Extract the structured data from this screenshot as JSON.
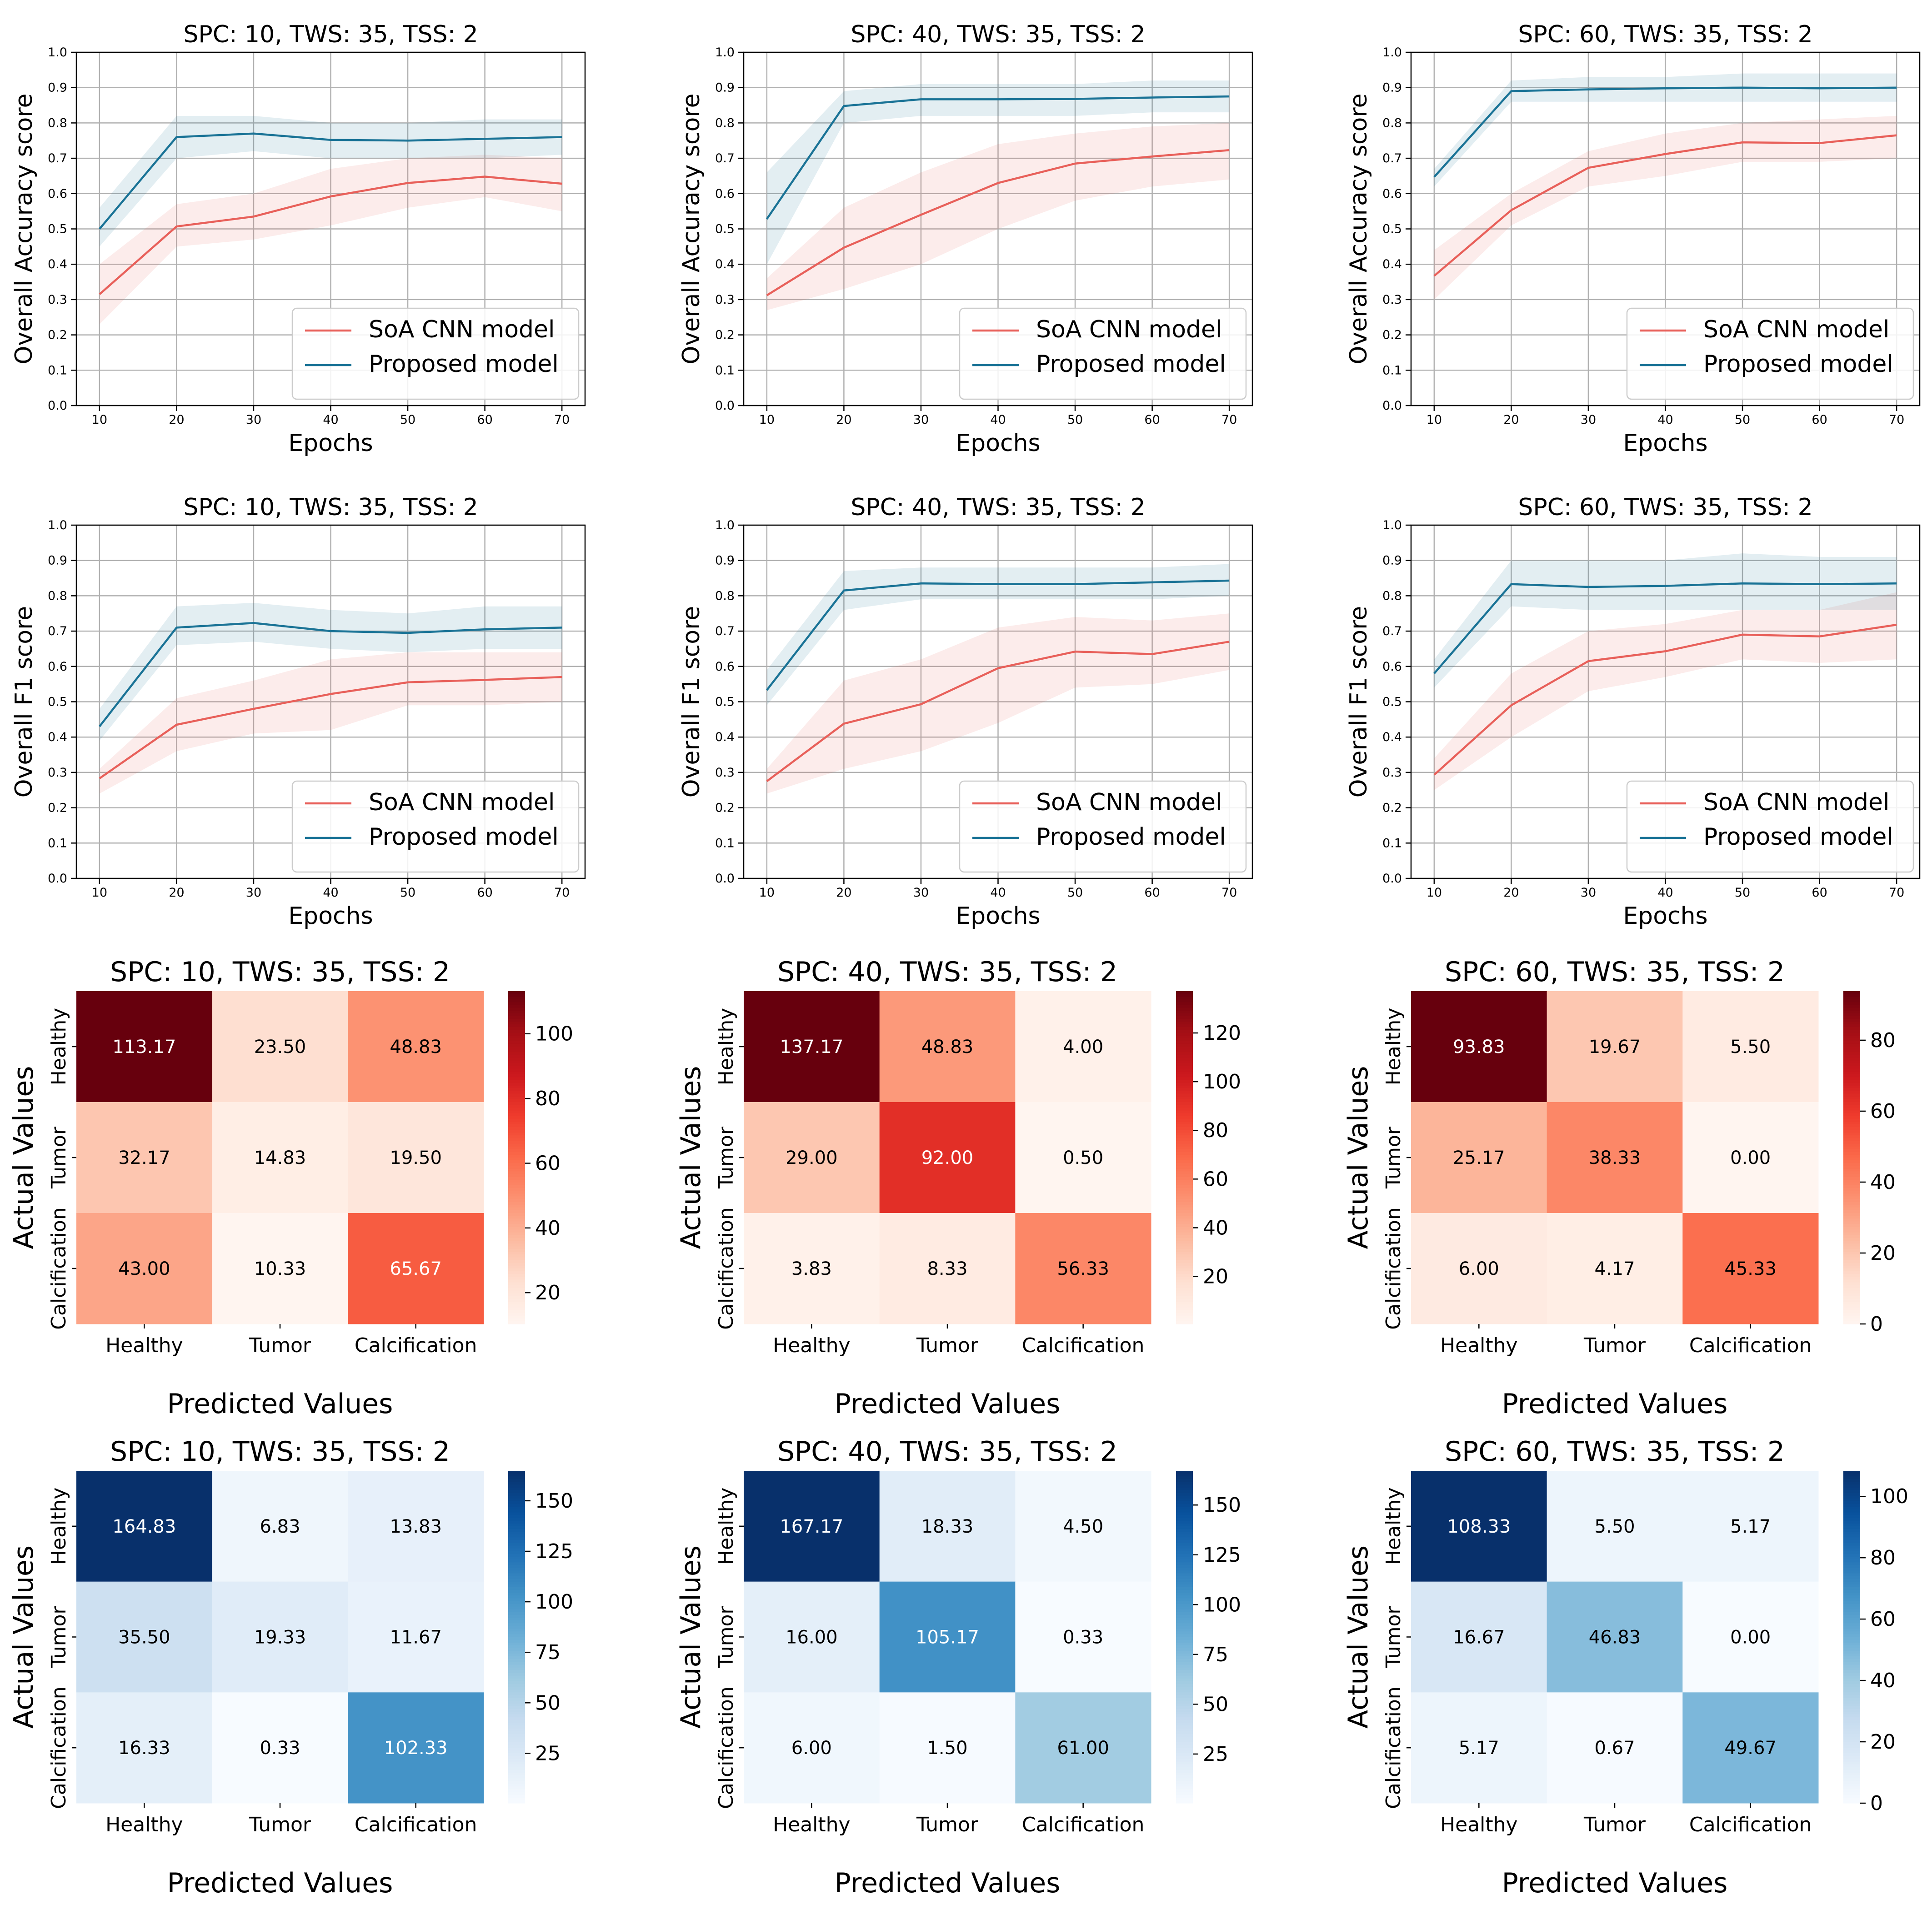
{
  "figure": {
    "description": ""
  },
  "chart_data": [
    {
      "kind": "line",
      "type": "line",
      "slot": 0,
      "title": "SPC: 10, TWS: 35, TSS: 2",
      "xlabel": "Epochs",
      "ylabel": "Overall Accuracy score",
      "x": [
        10,
        20,
        30,
        40,
        50,
        60,
        70
      ],
      "xlim": [
        7,
        73
      ],
      "ylim": [
        0.0,
        1.0
      ],
      "xticks": [
        "10",
        "20",
        "30",
        "40",
        "50",
        "60",
        "70"
      ],
      "yticks": [
        "0.0",
        "0.1",
        "0.2",
        "0.3",
        "0.4",
        "0.5",
        "0.6",
        "0.7",
        "0.8",
        "0.9",
        "1.0"
      ],
      "grid": true,
      "legend_position": "lower-right",
      "series": [
        {
          "name": "SoA CNN model",
          "color": "#e8605a",
          "values": [
            0.315,
            0.507,
            0.535,
            0.592,
            0.63,
            0.648,
            0.628
          ],
          "lower": [
            0.23,
            0.45,
            0.47,
            0.51,
            0.56,
            0.59,
            0.55
          ],
          "upper": [
            0.4,
            0.57,
            0.6,
            0.67,
            0.7,
            0.71,
            0.7
          ]
        },
        {
          "name": "Proposed model",
          "color": "#1a7396",
          "values": [
            0.5,
            0.76,
            0.77,
            0.752,
            0.75,
            0.755,
            0.76
          ],
          "lower": [
            0.45,
            0.7,
            0.72,
            0.7,
            0.7,
            0.7,
            0.71
          ],
          "upper": [
            0.56,
            0.82,
            0.82,
            0.8,
            0.8,
            0.81,
            0.81
          ]
        }
      ]
    },
    {
      "kind": "line",
      "type": "line",
      "slot": 1,
      "title": "SPC: 40, TWS: 35, TSS: 2",
      "xlabel": "Epochs",
      "ylabel": "Overall Accuracy score",
      "x": [
        10,
        20,
        30,
        40,
        50,
        60,
        70
      ],
      "xlim": [
        7,
        73
      ],
      "ylim": [
        0.0,
        1.0
      ],
      "xticks": [
        "10",
        "20",
        "30",
        "40",
        "50",
        "60",
        "70"
      ],
      "yticks": [
        "0.0",
        "0.1",
        "0.2",
        "0.3",
        "0.4",
        "0.5",
        "0.6",
        "0.7",
        "0.8",
        "0.9",
        "1.0"
      ],
      "grid": true,
      "legend_position": "lower-right",
      "series": [
        {
          "name": "SoA CNN model",
          "color": "#e8605a",
          "values": [
            0.312,
            0.447,
            0.54,
            0.63,
            0.685,
            0.705,
            0.723
          ],
          "lower": [
            0.27,
            0.33,
            0.4,
            0.5,
            0.58,
            0.62,
            0.64
          ],
          "upper": [
            0.36,
            0.56,
            0.66,
            0.74,
            0.77,
            0.79,
            0.8
          ]
        },
        {
          "name": "Proposed model",
          "color": "#1a7396",
          "values": [
            0.528,
            0.848,
            0.867,
            0.867,
            0.868,
            0.872,
            0.875
          ],
          "lower": [
            0.4,
            0.8,
            0.82,
            0.82,
            0.82,
            0.83,
            0.83
          ],
          "upper": [
            0.66,
            0.89,
            0.91,
            0.91,
            0.91,
            0.92,
            0.92
          ]
        }
      ]
    },
    {
      "kind": "line",
      "type": "line",
      "slot": 2,
      "title": "SPC: 60, TWS: 35, TSS: 2",
      "xlabel": "Epochs",
      "ylabel": "Overall Accuracy score",
      "x": [
        10,
        20,
        30,
        40,
        50,
        60,
        70
      ],
      "xlim": [
        7,
        73
      ],
      "ylim": [
        0.0,
        1.0
      ],
      "xticks": [
        "10",
        "20",
        "30",
        "40",
        "50",
        "60",
        "70"
      ],
      "yticks": [
        "0.0",
        "0.1",
        "0.2",
        "0.3",
        "0.4",
        "0.5",
        "0.6",
        "0.7",
        "0.8",
        "0.9",
        "1.0"
      ],
      "grid": true,
      "legend_position": "lower-right",
      "series": [
        {
          "name": "SoA CNN model",
          "color": "#e8605a",
          "values": [
            0.367,
            0.553,
            0.673,
            0.712,
            0.745,
            0.743,
            0.765
          ],
          "lower": [
            0.3,
            0.51,
            0.62,
            0.65,
            0.69,
            0.69,
            0.7
          ],
          "upper": [
            0.44,
            0.6,
            0.72,
            0.77,
            0.8,
            0.81,
            0.82
          ]
        },
        {
          "name": "Proposed model",
          "color": "#1a7396",
          "values": [
            0.647,
            0.89,
            0.895,
            0.898,
            0.9,
            0.898,
            0.9
          ],
          "lower": [
            0.62,
            0.86,
            0.86,
            0.86,
            0.86,
            0.86,
            0.86
          ],
          "upper": [
            0.67,
            0.92,
            0.93,
            0.93,
            0.94,
            0.94,
            0.94
          ]
        }
      ]
    },
    {
      "kind": "line",
      "type": "line",
      "slot": 3,
      "title": "SPC: 10, TWS: 35, TSS: 2",
      "xlabel": "Epochs",
      "ylabel": "Overall F1 score",
      "x": [
        10,
        20,
        30,
        40,
        50,
        60,
        70
      ],
      "xlim": [
        7,
        73
      ],
      "ylim": [
        0.0,
        1.0
      ],
      "xticks": [
        "10",
        "20",
        "30",
        "40",
        "50",
        "60",
        "70"
      ],
      "yticks": [
        "0.0",
        "0.1",
        "0.2",
        "0.3",
        "0.4",
        "0.5",
        "0.6",
        "0.7",
        "0.8",
        "0.9",
        "1.0"
      ],
      "grid": true,
      "legend_position": "lower-right",
      "series": [
        {
          "name": "SoA CNN model",
          "color": "#e8605a",
          "values": [
            0.283,
            0.435,
            0.48,
            0.522,
            0.555,
            0.562,
            0.57
          ],
          "lower": [
            0.24,
            0.36,
            0.41,
            0.42,
            0.49,
            0.49,
            0.5
          ],
          "upper": [
            0.31,
            0.51,
            0.56,
            0.62,
            0.64,
            0.64,
            0.64
          ]
        },
        {
          "name": "Proposed model",
          "color": "#1a7396",
          "values": [
            0.43,
            0.71,
            0.723,
            0.7,
            0.695,
            0.705,
            0.71
          ],
          "lower": [
            0.39,
            0.66,
            0.67,
            0.65,
            0.64,
            0.65,
            0.65
          ],
          "upper": [
            0.48,
            0.77,
            0.78,
            0.76,
            0.75,
            0.77,
            0.77
          ]
        }
      ]
    },
    {
      "kind": "line",
      "type": "line",
      "slot": 4,
      "title": "SPC: 40, TWS: 35, TSS: 2",
      "xlabel": "Epochs",
      "ylabel": "Overall F1 score",
      "x": [
        10,
        20,
        30,
        40,
        50,
        60,
        70
      ],
      "xlim": [
        7,
        73
      ],
      "ylim": [
        0.0,
        1.0
      ],
      "xticks": [
        "10",
        "20",
        "30",
        "40",
        "50",
        "60",
        "70"
      ],
      "yticks": [
        "0.0",
        "0.1",
        "0.2",
        "0.3",
        "0.4",
        "0.5",
        "0.6",
        "0.7",
        "0.8",
        "0.9",
        "1.0"
      ],
      "grid": true,
      "legend_position": "lower-right",
      "series": [
        {
          "name": "SoA CNN model",
          "color": "#e8605a",
          "values": [
            0.275,
            0.438,
            0.493,
            0.595,
            0.642,
            0.635,
            0.67
          ],
          "lower": [
            0.24,
            0.31,
            0.36,
            0.44,
            0.54,
            0.55,
            0.59
          ],
          "upper": [
            0.31,
            0.56,
            0.62,
            0.71,
            0.74,
            0.73,
            0.75
          ]
        },
        {
          "name": "Proposed model",
          "color": "#1a7396",
          "values": [
            0.533,
            0.815,
            0.835,
            0.833,
            0.833,
            0.838,
            0.843
          ],
          "lower": [
            0.49,
            0.76,
            0.79,
            0.79,
            0.79,
            0.79,
            0.8
          ],
          "upper": [
            0.59,
            0.87,
            0.88,
            0.88,
            0.88,
            0.88,
            0.89
          ]
        }
      ]
    },
    {
      "kind": "line",
      "type": "line",
      "slot": 5,
      "title": "SPC: 60, TWS: 35, TSS: 2",
      "xlabel": "Epochs",
      "ylabel": "Overall F1 score",
      "x": [
        10,
        20,
        30,
        40,
        50,
        60,
        70
      ],
      "xlim": [
        7,
        73
      ],
      "ylim": [
        0.0,
        1.0
      ],
      "xticks": [
        "10",
        "20",
        "30",
        "40",
        "50",
        "60",
        "70"
      ],
      "yticks": [
        "0.0",
        "0.1",
        "0.2",
        "0.3",
        "0.4",
        "0.5",
        "0.6",
        "0.7",
        "0.8",
        "0.9",
        "1.0"
      ],
      "grid": true,
      "legend_position": "lower-right",
      "series": [
        {
          "name": "SoA CNN model",
          "color": "#e8605a",
          "values": [
            0.293,
            0.49,
            0.615,
            0.643,
            0.69,
            0.685,
            0.718
          ],
          "lower": [
            0.25,
            0.4,
            0.53,
            0.57,
            0.62,
            0.61,
            0.62
          ],
          "upper": [
            0.34,
            0.58,
            0.7,
            0.72,
            0.76,
            0.76,
            0.81
          ]
        },
        {
          "name": "Proposed model",
          "color": "#1a7396",
          "values": [
            0.58,
            0.833,
            0.825,
            0.828,
            0.835,
            0.833,
            0.835
          ],
          "lower": [
            0.54,
            0.77,
            0.76,
            0.76,
            0.76,
            0.76,
            0.76
          ],
          "upper": [
            0.62,
            0.9,
            0.9,
            0.9,
            0.92,
            0.91,
            0.91
          ]
        }
      ]
    },
    {
      "kind": "heatmap",
      "type": "heatmap",
      "slot": 6,
      "colormap": "reds",
      "title": "SPC: 10, TWS: 35, TSS: 2",
      "xlabel": "Predicted Values",
      "ylabel": "Actual Values",
      "categories": [
        "Healthy",
        "Tumor",
        "Calcification"
      ],
      "vmin": 10.33,
      "vmax": 113.17,
      "colorbar_ticks": [
        20,
        40,
        60,
        80,
        100
      ],
      "colorbar_labels": [
        "20",
        "40",
        "60",
        "80",
        "100"
      ],
      "values": [
        [
          113.17,
          23.5,
          48.83
        ],
        [
          32.17,
          14.83,
          19.5
        ],
        [
          43.0,
          10.33,
          65.67
        ]
      ],
      "labels": [
        [
          "113.17",
          "23.50",
          "48.83"
        ],
        [
          "32.17",
          "14.83",
          "19.50"
        ],
        [
          "43.00",
          "10.33",
          "65.67"
        ]
      ]
    },
    {
      "kind": "heatmap",
      "type": "heatmap",
      "slot": 7,
      "colormap": "reds",
      "title": "SPC: 40, TWS: 35, TSS: 2",
      "xlabel": "Predicted Values",
      "ylabel": "Actual Values",
      "categories": [
        "Healthy",
        "Tumor",
        "Calcification"
      ],
      "vmin": 0.5,
      "vmax": 137.17,
      "colorbar_ticks": [
        20,
        40,
        60,
        80,
        100,
        120
      ],
      "colorbar_labels": [
        "20",
        "40",
        "60",
        "80",
        "100",
        "120"
      ],
      "values": [
        [
          137.17,
          48.83,
          4.0
        ],
        [
          29.0,
          92.0,
          0.5
        ],
        [
          3.83,
          8.33,
          56.33
        ]
      ],
      "labels": [
        [
          "137.17",
          "48.83",
          "4.00"
        ],
        [
          "29.00",
          "92.00",
          "0.50"
        ],
        [
          "3.83",
          "8.33",
          "56.33"
        ]
      ]
    },
    {
      "kind": "heatmap",
      "type": "heatmap",
      "slot": 8,
      "colormap": "reds",
      "title": "SPC: 60, TWS: 35, TSS: 2",
      "xlabel": "Predicted Values",
      "ylabel": "Actual Values",
      "categories": [
        "Healthy",
        "Tumor",
        "Calcification"
      ],
      "vmin": 0.0,
      "vmax": 93.83,
      "colorbar_ticks": [
        0,
        20,
        40,
        60,
        80
      ],
      "colorbar_labels": [
        "0",
        "20",
        "40",
        "60",
        "80"
      ],
      "values": [
        [
          93.83,
          19.67,
          5.5
        ],
        [
          25.17,
          38.33,
          0.0
        ],
        [
          6.0,
          4.17,
          45.33
        ]
      ],
      "labels": [
        [
          "93.83",
          "19.67",
          "5.50"
        ],
        [
          "25.17",
          "38.33",
          "0.00"
        ],
        [
          "6.00",
          "4.17",
          "45.33"
        ]
      ]
    },
    {
      "kind": "heatmap",
      "type": "heatmap",
      "slot": 9,
      "colormap": "blues",
      "title": "SPC: 10, TWS: 35, TSS: 2",
      "xlabel": "Predicted Values",
      "ylabel": "Actual Values",
      "categories": [
        "Healthy",
        "Tumor",
        "Calcification"
      ],
      "vmin": 0.33,
      "vmax": 164.83,
      "colorbar_ticks": [
        25,
        50,
        75,
        100,
        125,
        150
      ],
      "colorbar_labels": [
        "25",
        "50",
        "75",
        "100",
        "125",
        "150"
      ],
      "values": [
        [
          164.83,
          6.83,
          13.83
        ],
        [
          35.5,
          19.33,
          11.67
        ],
        [
          16.33,
          0.33,
          102.33
        ]
      ],
      "labels": [
        [
          "164.83",
          "6.83",
          "13.83"
        ],
        [
          "35.50",
          "19.33",
          "11.67"
        ],
        [
          "16.33",
          "0.33",
          "102.33"
        ]
      ]
    },
    {
      "kind": "heatmap",
      "type": "heatmap",
      "slot": 10,
      "colormap": "blues",
      "title": "SPC: 40, TWS: 35, TSS: 2",
      "xlabel": "Predicted Values",
      "ylabel": "Actual Values",
      "categories": [
        "Healthy",
        "Tumor",
        "Calcification"
      ],
      "vmin": 0.33,
      "vmax": 167.17,
      "colorbar_ticks": [
        25,
        50,
        75,
        100,
        125,
        150
      ],
      "colorbar_labels": [
        "25",
        "50",
        "75",
        "100",
        "125",
        "150"
      ],
      "values": [
        [
          167.17,
          18.33,
          4.5
        ],
        [
          16.0,
          105.17,
          0.33
        ],
        [
          6.0,
          1.5,
          61.0
        ]
      ],
      "labels": [
        [
          "167.17",
          "18.33",
          "4.50"
        ],
        [
          "16.00",
          "105.17",
          "0.33"
        ],
        [
          "6.00",
          "1.50",
          "61.00"
        ]
      ]
    },
    {
      "kind": "heatmap",
      "type": "heatmap",
      "slot": 11,
      "colormap": "blues",
      "title": "SPC: 60, TWS: 35, TSS: 2",
      "xlabel": "Predicted Values",
      "ylabel": "Actual Values",
      "categories": [
        "Healthy",
        "Tumor",
        "Calcification"
      ],
      "vmin": 0.0,
      "vmax": 108.33,
      "colorbar_ticks": [
        0,
        20,
        40,
        60,
        80,
        100
      ],
      "colorbar_labels": [
        "0",
        "20",
        "40",
        "60",
        "80",
        "100"
      ],
      "values": [
        [
          108.33,
          5.5,
          5.17
        ],
        [
          16.67,
          46.83,
          0.0
        ],
        [
          5.17,
          0.67,
          49.67
        ]
      ],
      "labels": [
        [
          "108.33",
          "5.50",
          "5.17"
        ],
        [
          "16.67",
          "46.83",
          "0.00"
        ],
        [
          "5.17",
          "0.67",
          "49.67"
        ]
      ]
    }
  ]
}
